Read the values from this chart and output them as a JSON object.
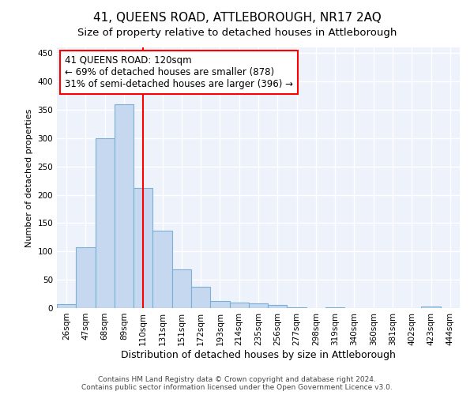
{
  "title": "41, QUEENS ROAD, ATTLEBOROUGH, NR17 2AQ",
  "subtitle": "Size of property relative to detached houses in Attleborough",
  "xlabel": "Distribution of detached houses by size in Attleborough",
  "ylabel": "Number of detached properties",
  "categories": [
    "26sqm",
    "47sqm",
    "68sqm",
    "89sqm",
    "110sqm",
    "131sqm",
    "151sqm",
    "172sqm",
    "193sqm",
    "214sqm",
    "235sqm",
    "256sqm",
    "277sqm",
    "298sqm",
    "319sqm",
    "340sqm",
    "360sqm",
    "381sqm",
    "402sqm",
    "423sqm",
    "444sqm"
  ],
  "values": [
    7,
    107,
    300,
    360,
    212,
    137,
    68,
    38,
    13,
    10,
    9,
    6,
    2,
    0,
    2,
    0,
    0,
    0,
    0,
    3,
    0
  ],
  "bar_color": "#c5d8f0",
  "bar_edge_color": "#7bafd4",
  "vline_x_index": 4,
  "vline_color": "red",
  "annotation_line1": "41 QUEENS ROAD: 120sqm",
  "annotation_line2": "← 69% of detached houses are smaller (878)",
  "annotation_line3": "31% of semi-detached houses are larger (396) →",
  "annotation_box_color": "white",
  "annotation_box_edge": "red",
  "ylim": [
    0,
    460
  ],
  "yticks": [
    0,
    50,
    100,
    150,
    200,
    250,
    300,
    350,
    400,
    450
  ],
  "footer1": "Contains HM Land Registry data © Crown copyright and database right 2024.",
  "footer2": "Contains public sector information licensed under the Open Government Licence v3.0.",
  "background_color": "#eef2fb",
  "grid_color": "white",
  "title_fontsize": 11,
  "subtitle_fontsize": 9.5,
  "xlabel_fontsize": 9,
  "ylabel_fontsize": 8,
  "tick_fontsize": 7.5,
  "annotation_fontsize": 8.5,
  "footer_fontsize": 6.5
}
